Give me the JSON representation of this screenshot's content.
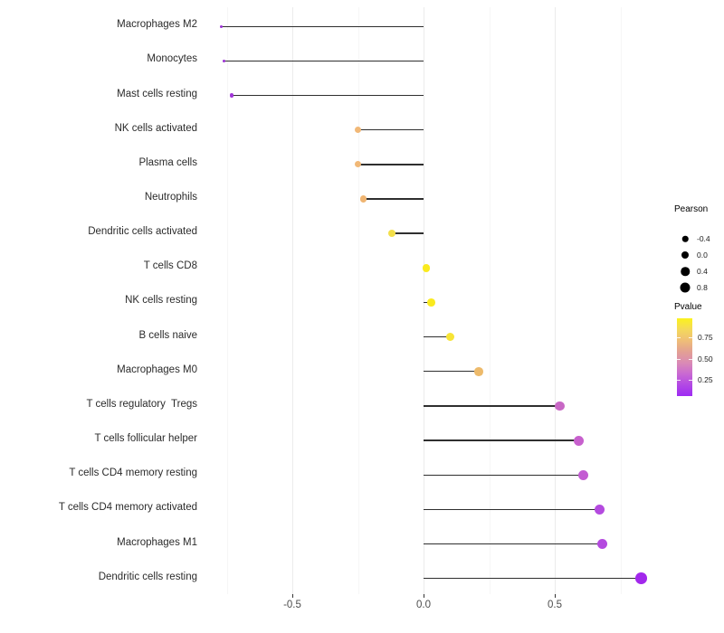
{
  "chart_data": {
    "type": "scatter",
    "variant": "lollipop",
    "categories": [
      "Macrophages M2",
      "Monocytes",
      "Mast cells resting",
      "NK cells activated",
      "Plasma cells",
      "Neutrophils",
      "Dendritic cells activated",
      "T cells CD8",
      "NK cells resting",
      "B cells naive",
      "Macrophages M0",
      "T cells regulatory  Tregs",
      "T cells follicular helper",
      "T cells CD4 memory resting",
      "T cells CD4 memory activated",
      "Macrophages M1",
      "Dendritic cells resting"
    ],
    "values": [
      -0.77,
      -0.76,
      -0.73,
      -0.25,
      -0.25,
      -0.23,
      -0.12,
      0.01,
      0.03,
      0.1,
      0.21,
      0.52,
      0.59,
      0.61,
      0.67,
      0.68,
      0.83
    ],
    "point_colors": [
      "#9B32D4",
      "#9B32D4",
      "#A136D8",
      "#F1B877",
      "#F1B877",
      "#F0B572",
      "#F3DF4A",
      "#FAEA1E",
      "#FAEA1E",
      "#F7E436",
      "#EDBA6B",
      "#C867C5",
      "#C760CD",
      "#C35CD2",
      "#B44ADF",
      "#B44ADF",
      "#A228EC"
    ],
    "point_diameters": [
      3.4,
      3.5,
      4.4,
      7.2,
      7.2,
      7.3,
      7.9,
      8.6,
      8.7,
      9.0,
      9.5,
      10.8,
      11.0,
      11.1,
      11.4,
      11.4,
      12.6
    ],
    "stem_color": "#2f2f2f",
    "xlabel": "",
    "ylabel": "",
    "xlim": [
      -0.85,
      0.91
    ],
    "x_major_ticks": [
      -0.5,
      0.0,
      0.5
    ],
    "x_tick_labels": [
      "-0.5",
      "0.0",
      "0.5"
    ],
    "x_minor_ticks": [
      -0.75,
      -0.25,
      0.25,
      0.75
    ],
    "grid": "vertical-only",
    "legend_position": "right",
    "legend": {
      "size": {
        "title": "Pearson",
        "entries": [
          {
            "label": "-0.4",
            "diameter": 6.5
          },
          {
            "label": "0.0",
            "diameter": 8.0
          },
          {
            "label": "0.4",
            "diameter": 9.5
          },
          {
            "label": "0.8",
            "diameter": 11.0
          }
        ]
      },
      "color": {
        "title": "Pvalue",
        "tick_labels": [
          "0.75",
          "0.50",
          "0.25"
        ],
        "gradient_stops": [
          "#FBF21C",
          "#F4D95B",
          "#EFBE77",
          "#E3A093",
          "#DA8BB5",
          "#C969D2",
          "#B248E4",
          "#9E2BF3"
        ]
      }
    }
  }
}
